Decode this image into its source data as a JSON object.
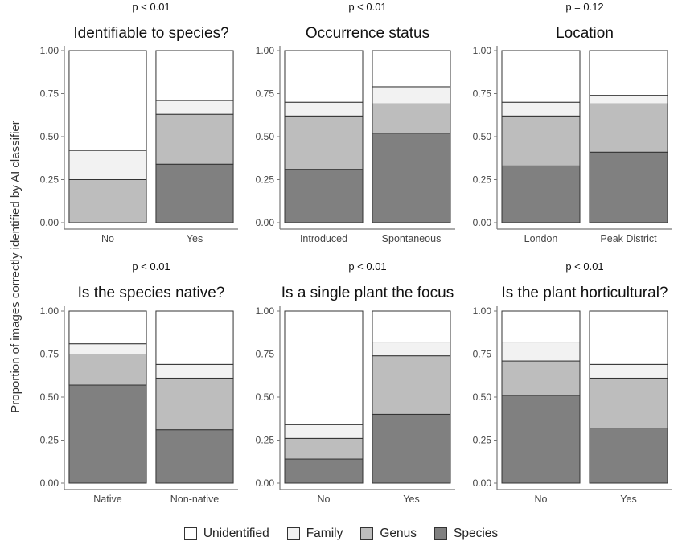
{
  "ylabel": "Proportion of images correctly identified by AI classifier",
  "legend": [
    {
      "label": "Unidentified",
      "color": "#ffffff"
    },
    {
      "label": "Family",
      "color": "#f2f2f2"
    },
    {
      "label": "Genus",
      "color": "#bdbdbd"
    },
    {
      "label": "Species",
      "color": "#808080"
    }
  ],
  "chart_data": [
    {
      "type": "bar",
      "title": "Identifiable to species?",
      "pvalue": "p < 0.01",
      "categories": [
        "No",
        "Yes"
      ],
      "series": [
        {
          "name": "Species",
          "values": [
            0.0,
            0.34
          ]
        },
        {
          "name": "Genus",
          "values": [
            0.25,
            0.29
          ]
        },
        {
          "name": "Family",
          "values": [
            0.17,
            0.08
          ]
        },
        {
          "name": "Unidentified",
          "values": [
            0.58,
            0.29
          ]
        }
      ],
      "yticks": [
        "0.00",
        "0.25",
        "0.50",
        "0.75",
        "1.00"
      ],
      "ylim": [
        0,
        1
      ]
    },
    {
      "type": "bar",
      "title": "Occurrence status",
      "pvalue": "p < 0.01",
      "categories": [
        "Introduced",
        "Spontaneous"
      ],
      "series": [
        {
          "name": "Species",
          "values": [
            0.31,
            0.52
          ]
        },
        {
          "name": "Genus",
          "values": [
            0.31,
            0.17
          ]
        },
        {
          "name": "Family",
          "values": [
            0.08,
            0.1
          ]
        },
        {
          "name": "Unidentified",
          "values": [
            0.3,
            0.21
          ]
        }
      ],
      "yticks": [
        "0.00",
        "0.25",
        "0.50",
        "0.75",
        "1.00"
      ],
      "ylim": [
        0,
        1
      ]
    },
    {
      "type": "bar",
      "title": "Location",
      "pvalue": "p = 0.12",
      "categories": [
        "London",
        "Peak District"
      ],
      "series": [
        {
          "name": "Species",
          "values": [
            0.33,
            0.41
          ]
        },
        {
          "name": "Genus",
          "values": [
            0.29,
            0.28
          ]
        },
        {
          "name": "Family",
          "values": [
            0.08,
            0.05
          ]
        },
        {
          "name": "Unidentified",
          "values": [
            0.3,
            0.26
          ]
        }
      ],
      "yticks": [
        "0.00",
        "0.25",
        "0.50",
        "0.75",
        "1.00"
      ],
      "ylim": [
        0,
        1
      ]
    },
    {
      "type": "bar",
      "title": "Is the species native?",
      "pvalue": "p < 0.01",
      "categories": [
        "Native",
        "Non-native"
      ],
      "series": [
        {
          "name": "Species",
          "values": [
            0.57,
            0.31
          ]
        },
        {
          "name": "Genus",
          "values": [
            0.18,
            0.3
          ]
        },
        {
          "name": "Family",
          "values": [
            0.06,
            0.08
          ]
        },
        {
          "name": "Unidentified",
          "values": [
            0.19,
            0.31
          ]
        }
      ],
      "yticks": [
        "0.00",
        "0.25",
        "0.50",
        "0.75",
        "1.00"
      ],
      "ylim": [
        0,
        1
      ]
    },
    {
      "type": "bar",
      "title": "Is a single plant the focus",
      "pvalue": "p < 0.01",
      "categories": [
        "No",
        "Yes"
      ],
      "series": [
        {
          "name": "Species",
          "values": [
            0.14,
            0.4
          ]
        },
        {
          "name": "Genus",
          "values": [
            0.12,
            0.34
          ]
        },
        {
          "name": "Family",
          "values": [
            0.08,
            0.08
          ]
        },
        {
          "name": "Unidentified",
          "values": [
            0.66,
            0.18
          ]
        }
      ],
      "yticks": [
        "0.00",
        "0.25",
        "0.50",
        "0.75",
        "1.00"
      ],
      "ylim": [
        0,
        1
      ]
    },
    {
      "type": "bar",
      "title": "Is the plant horticultural?",
      "pvalue": "p < 0.01",
      "categories": [
        "No",
        "Yes"
      ],
      "series": [
        {
          "name": "Species",
          "values": [
            0.51,
            0.32
          ]
        },
        {
          "name": "Genus",
          "values": [
            0.2,
            0.29
          ]
        },
        {
          "name": "Family",
          "values": [
            0.11,
            0.08
          ]
        },
        {
          "name": "Unidentified",
          "values": [
            0.18,
            0.31
          ]
        }
      ],
      "yticks": [
        "0.00",
        "0.25",
        "0.50",
        "0.75",
        "1.00"
      ],
      "ylim": [
        0,
        1
      ]
    }
  ]
}
